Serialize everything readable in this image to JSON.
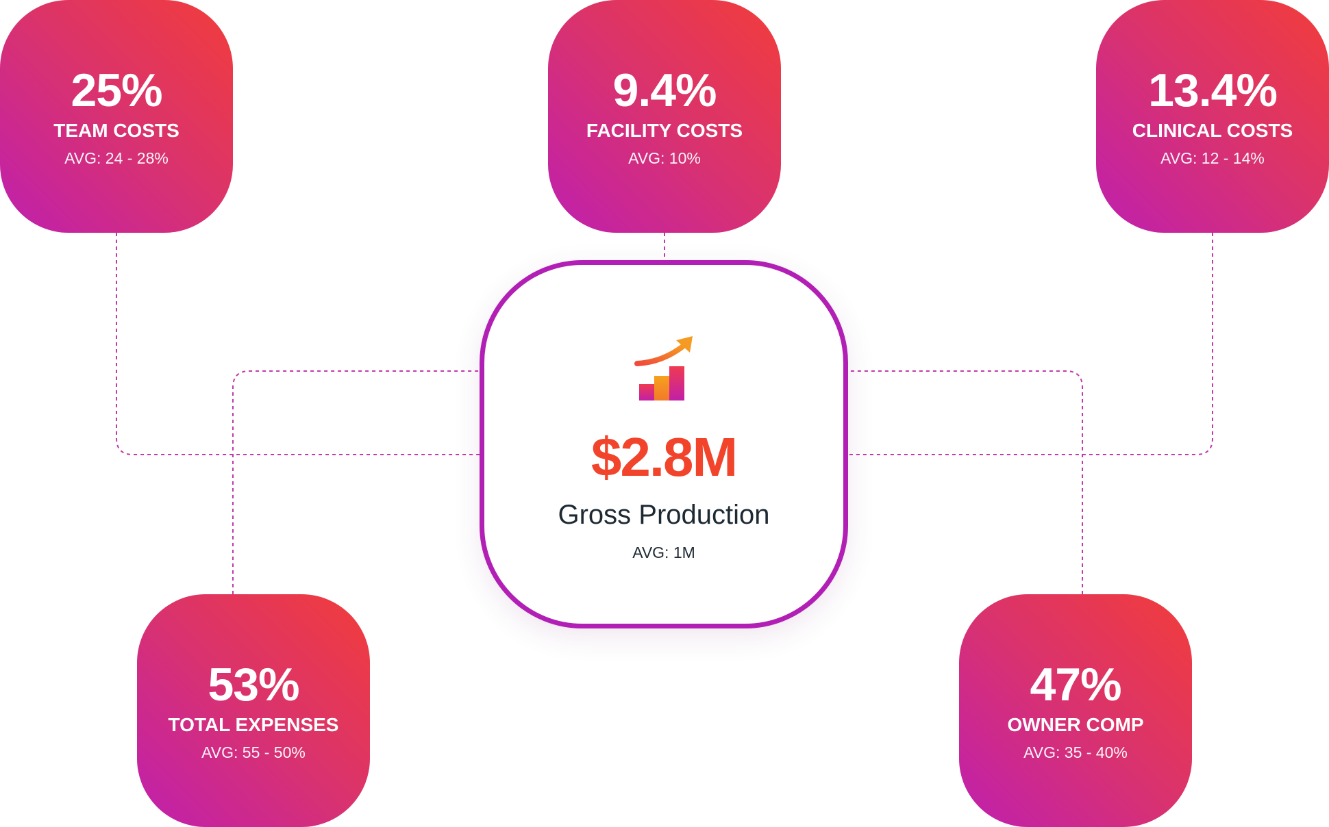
{
  "colors": {
    "gradient_start": "#bf1faf",
    "gradient_end": "#f23d3a",
    "center_border": "#b21fb5",
    "center_value": "#f2432b",
    "connector": "#c23aa8",
    "text_dark": "#1e2a33"
  },
  "center": {
    "icon": "growth-chart-icon",
    "value": "$2.8M",
    "label": "Gross Production",
    "avg": "AVG: 1M"
  },
  "cards": {
    "team": {
      "value": "25%",
      "label": "TEAM COSTS",
      "avg": "AVG: 24 - 28%"
    },
    "facility": {
      "value": "9.4%",
      "label": "FACILITY COSTS",
      "avg": "AVG: 10%"
    },
    "clinical": {
      "value": "13.4%",
      "label": "CLINICAL COSTS",
      "avg": "AVG: 12 - 14%"
    },
    "total": {
      "value": "53%",
      "label": "TOTAL EXPENSES",
      "avg": "AVG: 55 - 50%"
    },
    "owner": {
      "value": "47%",
      "label": "OWNER COMP",
      "avg": "AVG: 35 - 40%"
    }
  }
}
